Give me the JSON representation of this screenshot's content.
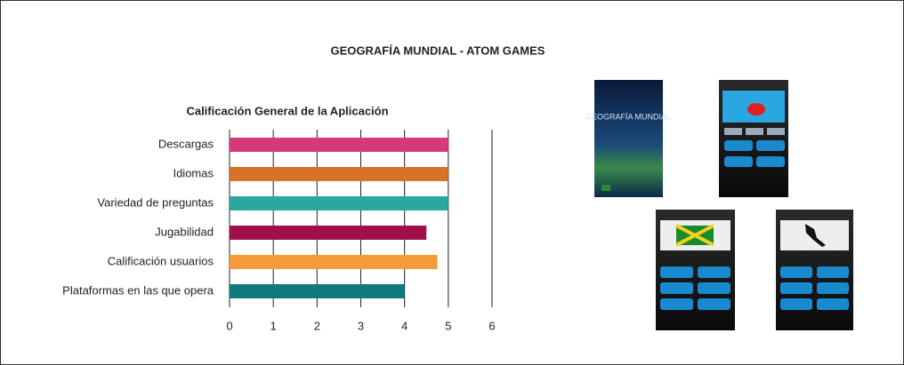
{
  "chart_data": {
    "type": "bar",
    "orientation": "horizontal",
    "title": "GEOGRAFÍA MUNDIAL - ATOM GAMES",
    "subtitle": "Calificación General de la Aplicación",
    "categories": [
      "Descargas",
      "Idiomas",
      "Variedad de preguntas",
      "Jugabilidad",
      "Calificación usuarios",
      "Plataformas en las que opera"
    ],
    "values": [
      5,
      5,
      5,
      4.5,
      4.75,
      4
    ],
    "colors": [
      "#d63a78",
      "#d8722a",
      "#2aa89e",
      "#a0104a",
      "#f59a3a",
      "#0e7a7e"
    ],
    "xlim": [
      0,
      6
    ],
    "xticks": [
      0,
      1,
      2,
      3,
      4,
      5,
      6
    ],
    "grid": true
  },
  "screenshots": {
    "splash_title": "GEOGRAFÍA MUNDIAL"
  }
}
